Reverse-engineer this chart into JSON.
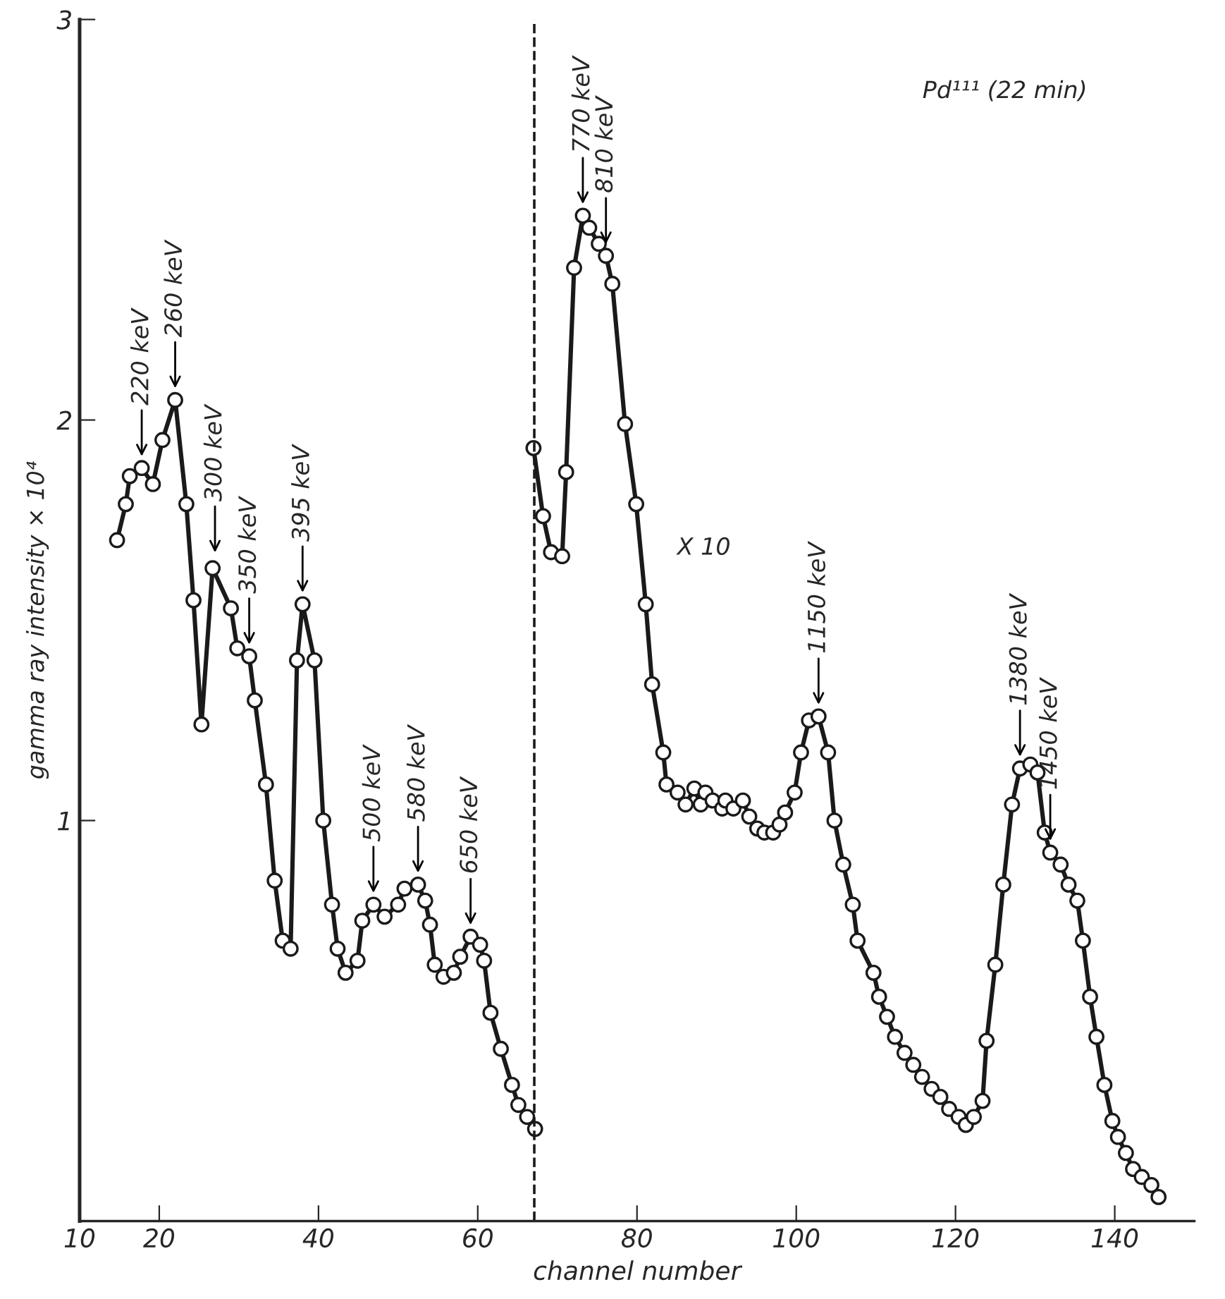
{
  "chart_data": {
    "type": "line",
    "xlabel": "channel number",
    "ylabel": "gamma ray intensity × 10⁴",
    "xlim": [
      10,
      150
    ],
    "xticks": [
      10,
      20,
      40,
      60,
      80,
      100,
      120,
      140
    ],
    "ylim": [
      0,
      3
    ],
    "yticks": [
      1,
      2,
      3
    ],
    "grid": false,
    "legend": false,
    "marker": "circle",
    "line_style": "solid",
    "series": [
      {
        "color": "#1a1a1a",
        "x": [
          14.7,
          15.8,
          16.3,
          17.8,
          19.2,
          20.4,
          22.0,
          23.4,
          24.3,
          25.3,
          26.7,
          29.0,
          29.8,
          31.3,
          32.0,
          33.4,
          34.5,
          35.5,
          36.5,
          37.3,
          38.0,
          39.5,
          40.6,
          41.7,
          42.4,
          43.4,
          44.9,
          45.5,
          46.9,
          48.3,
          50.0,
          50.8,
          52.5,
          53.4,
          54.0,
          54.6,
          55.7,
          57.0,
          57.8,
          59.1,
          60.3,
          60.8,
          61.6,
          62.9,
          64.3,
          65.1,
          66.2,
          67.2
        ],
        "values": [
          1.7,
          1.79,
          1.86,
          1.88,
          1.84,
          1.95,
          2.05,
          1.79,
          1.55,
          1.24,
          1.63,
          1.53,
          1.43,
          1.41,
          1.3,
          1.09,
          0.85,
          0.7,
          0.68,
          1.4,
          1.54,
          1.4,
          1.0,
          0.79,
          0.68,
          0.62,
          0.65,
          0.75,
          0.79,
          0.76,
          0.79,
          0.83,
          0.84,
          0.8,
          0.74,
          0.64,
          0.61,
          0.62,
          0.66,
          0.71,
          0.69,
          0.65,
          0.52,
          0.43,
          0.34,
          0.29,
          0.26,
          0.23
        ]
      },
      {
        "color": "#1a1a1a",
        "x": [
          67.0,
          68.2,
          69.2,
          70.6,
          71.1,
          72.1,
          73.2,
          74.0,
          75.2,
          76.1,
          76.9,
          78.5,
          79.9,
          81.1,
          81.9,
          83.3,
          83.7,
          85.1,
          86.1,
          87.2,
          88.0,
          88.6,
          89.5,
          90.7,
          91.1,
          92.1,
          93.3,
          94.1,
          95.1,
          96.0,
          97.1,
          97.9,
          98.6,
          99.8,
          100.6,
          101.6,
          102.8,
          104.0,
          104.8,
          105.9,
          107.1,
          107.7,
          109.7,
          110.4,
          111.4,
          112.4,
          113.6,
          114.7,
          115.8,
          117.0,
          118.1,
          119.2,
          120.4,
          121.3,
          122.3,
          123.4,
          123.9,
          125.0,
          126.0,
          127.1,
          128.1,
          129.4,
          130.3,
          131.2,
          131.9,
          133.2,
          134.2,
          135.3,
          136.0,
          136.9,
          137.7,
          138.7,
          139.7,
          140.4,
          141.4,
          142.3,
          143.4,
          144.6,
          145.5
        ],
        "values": [
          1.93,
          1.76,
          1.67,
          1.66,
          1.87,
          2.38,
          2.51,
          2.48,
          2.44,
          2.41,
          2.34,
          1.99,
          1.79,
          1.54,
          1.34,
          1.17,
          1.09,
          1.07,
          1.04,
          1.08,
          1.04,
          1.07,
          1.05,
          1.03,
          1.05,
          1.03,
          1.05,
          1.01,
          0.98,
          0.97,
          0.97,
          0.99,
          1.02,
          1.07,
          1.17,
          1.25,
          1.26,
          1.17,
          1.0,
          0.89,
          0.79,
          0.7,
          0.62,
          0.56,
          0.51,
          0.46,
          0.42,
          0.39,
          0.36,
          0.33,
          0.31,
          0.28,
          0.26,
          0.24,
          0.26,
          0.3,
          0.45,
          0.64,
          0.84,
          1.04,
          1.13,
          1.14,
          1.12,
          0.97,
          0.92,
          0.89,
          0.84,
          0.8,
          0.7,
          0.56,
          0.46,
          0.34,
          0.25,
          0.21,
          0.17,
          0.13,
          0.11,
          0.09,
          0.06
        ]
      }
    ],
    "ref_lines": [
      {
        "axis": "x",
        "value": 67.1,
        "color": "#1a1a1a",
        "line_style": "dashed"
      }
    ],
    "annotations": [
      "Pd¹¹¹ (22 min)",
      "X 10",
      {
        "text": "220 keV",
        "x": 17.8,
        "y": 1.88
      },
      {
        "text": "260 keV",
        "x": 22.0,
        "y": 2.05
      },
      {
        "text": "300 keV",
        "x": 27.0,
        "y": 1.64
      },
      {
        "text": "350 keV",
        "x": 31.3,
        "y": 1.41
      },
      {
        "text": "395 keV",
        "x": 38.0,
        "y": 1.54
      },
      {
        "text": "500 keV",
        "x": 46.9,
        "y": 0.79
      },
      {
        "text": "580 keV",
        "x": 52.5,
        "y": 0.84
      },
      {
        "text": "650 keV",
        "x": 59.1,
        "y": 0.71
      },
      {
        "text": "770 keV",
        "x": 73.2,
        "y": 2.51
      },
      {
        "text": "810 keV",
        "x": 76.1,
        "y": 2.41
      },
      {
        "text": "1150 keV",
        "x": 102.8,
        "y": 1.26
      },
      {
        "text": "1380 keV",
        "x": 128.1,
        "y": 1.13
      },
      {
        "text": "1450 keV",
        "x": 131.9,
        "y": 0.92
      }
    ]
  }
}
